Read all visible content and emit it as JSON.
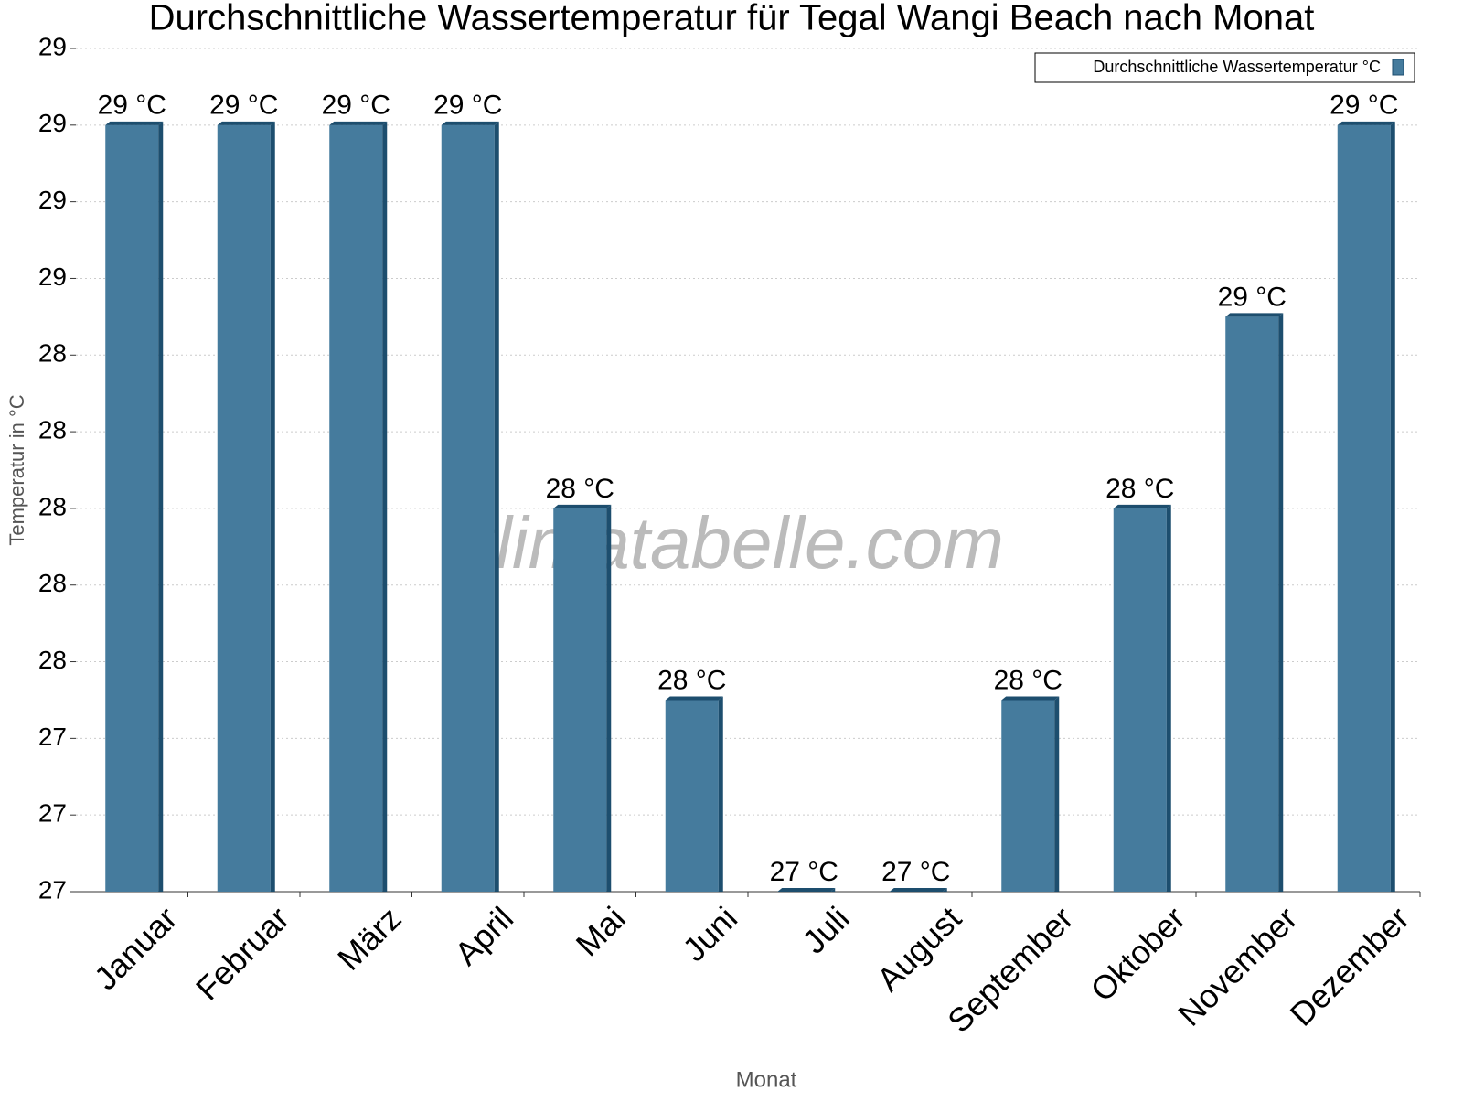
{
  "chart_data": {
    "type": "bar",
    "title": "Durchschnittliche Wassertemperatur für Tegal Wangi Beach nach Monat",
    "x_label": "Monat",
    "y_label": "Temperatur in °C",
    "watermark": "klimatabelle.com",
    "categories": [
      "Januar",
      "Februar",
      "März",
      "April",
      "Mai",
      "Juni",
      "Juli",
      "August",
      "September",
      "Oktober",
      "November",
      "Dezember"
    ],
    "series": [
      {
        "name": "Durchschnittliche Wassertemperatur °C",
        "color": "#457b9d",
        "values": [
          29,
          29,
          29,
          29,
          28,
          27.5,
          27,
          27,
          27.5,
          28,
          28.5,
          29
        ],
        "value_labels": [
          "29 °C",
          "29 °C",
          "29 °C",
          "29 °C",
          "28 °C",
          "28 °C",
          "27 °C",
          "27 °C",
          "28 °C",
          "28 °C",
          "29 °C",
          "29 °C"
        ]
      }
    ],
    "ylim": [
      27,
      29.2
    ],
    "yticks": [
      {
        "value": 27,
        "label": "27"
      },
      {
        "value": 27.2,
        "label": "27"
      },
      {
        "value": 27.4,
        "label": "27"
      },
      {
        "value": 27.6,
        "label": "28"
      },
      {
        "value": 27.8,
        "label": "28"
      },
      {
        "value": 28,
        "label": "28"
      },
      {
        "value": 28.2,
        "label": "28"
      },
      {
        "value": 28.4,
        "label": "28"
      },
      {
        "value": 28.6,
        "label": "29"
      },
      {
        "value": 28.8,
        "label": "29"
      },
      {
        "value": 29,
        "label": "29"
      },
      {
        "value": 29.2,
        "label": "29"
      }
    ],
    "grid": true,
    "legend": "top-right"
  }
}
